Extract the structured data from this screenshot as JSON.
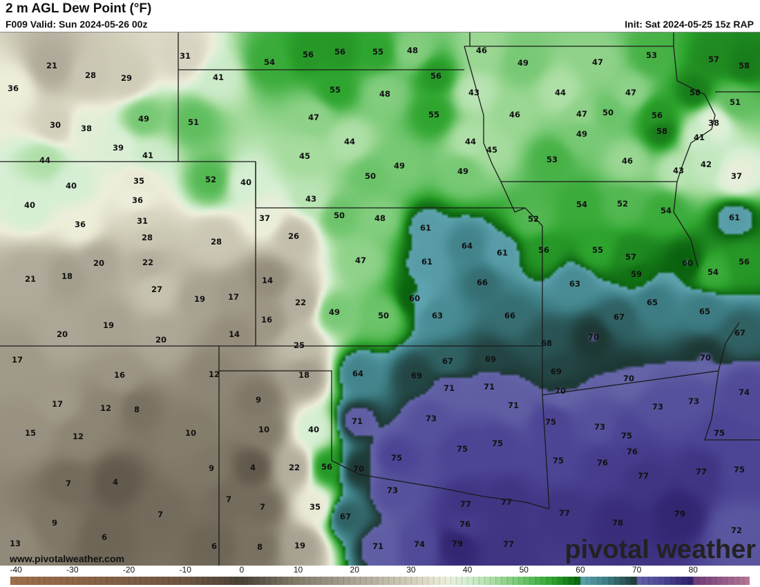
{
  "header": {
    "title": "2 m AGL Dew Point (°F)",
    "valid": "F009 Valid: Sun 2024-05-26 00z",
    "init": "Init: Sat 2024-05-25 15z RAP"
  },
  "map": {
    "website": "www.pivotalweather.com",
    "logo": "pivotal weather",
    "units": "°F",
    "station_values": [
      21,
      28,
      29,
      36,
      30,
      38,
      49,
      39,
      41,
      44,
      40,
      35,
      36,
      40,
      36,
      31,
      28,
      28,
      20,
      22,
      21,
      18,
      27,
      19,
      17,
      19,
      20,
      20,
      14,
      31,
      41,
      51,
      54,
      56,
      56,
      55,
      48,
      56,
      55,
      48,
      43,
      47,
      55,
      44,
      44,
      45,
      45,
      49,
      50,
      49,
      52,
      40,
      43,
      46,
      49,
      47,
      53,
      57,
      58,
      44,
      47,
      46,
      47,
      50,
      49,
      56,
      58,
      58,
      51,
      38,
      41,
      53,
      46,
      43,
      42,
      37,
      37,
      26,
      50,
      48,
      61,
      64,
      61,
      47,
      61,
      66,
      56,
      55,
      57,
      54,
      52,
      52,
      54,
      61,
      60,
      54,
      56,
      59,
      63,
      65,
      65,
      67,
      67,
      14,
      22,
      16,
      49,
      50,
      60,
      63,
      66,
      70,
      68,
      25,
      17,
      16,
      12,
      18,
      64,
      67,
      69,
      69,
      69,
      70,
      70,
      74,
      17,
      12,
      8,
      9,
      71,
      71,
      71,
      70,
      73,
      73,
      15,
      12,
      10,
      10,
      40,
      71,
      73,
      75,
      73,
      75,
      75,
      75,
      75,
      76,
      75,
      76,
      75,
      77,
      77,
      75,
      9,
      4,
      22,
      56,
      70,
      7,
      4,
      73,
      7,
      7,
      35,
      67,
      77,
      77,
      77,
      7,
      9,
      76,
      78,
      79,
      6,
      72,
      13,
      6,
      8,
      19,
      71,
      74,
      79,
      77
    ]
  },
  "colorbar": {
    "ticks": [
      "-40",
      "-30",
      "-20",
      "-10",
      "0",
      "10",
      "20",
      "30",
      "40",
      "50",
      "60",
      "70",
      "80"
    ],
    "range": [
      -41,
      90
    ],
    "stops": [
      [
        -41,
        "#a0704c"
      ],
      [
        -10,
        "#6e5642"
      ],
      [
        0,
        "#4a4236"
      ],
      [
        10,
        "#857d6c"
      ],
      [
        20,
        "#aca696"
      ],
      [
        30,
        "#d2cfbb"
      ],
      [
        36,
        "#eeeedb"
      ],
      [
        40,
        "#d6efd4"
      ],
      [
        45,
        "#a6dc9e"
      ],
      [
        50,
        "#6cc46a"
      ],
      [
        55,
        "#2ea52e"
      ],
      [
        59.99,
        "#0a620e"
      ],
      [
        60,
        "#5ea4b0"
      ],
      [
        65,
        "#3c7c82"
      ],
      [
        69.99,
        "#1d3835"
      ],
      [
        70,
        "#6464a8"
      ],
      [
        75,
        "#4c4494"
      ],
      [
        79.99,
        "#2c1e6a"
      ],
      [
        80,
        "#6c3c78"
      ],
      [
        90,
        "#b87898"
      ]
    ]
  }
}
